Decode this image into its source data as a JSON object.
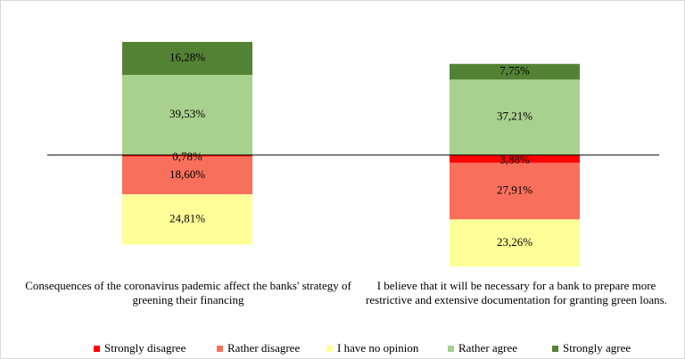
{
  "chart_data": {
    "type": "bar",
    "categories": [
      "Consequences of the coronavirus pademic affect the banks' strategy of greening their financing",
      "I believe that it will be necessary for a bank to prepare more restrictive and extensive documentation for granting green loans."
    ],
    "series": [
      {
        "name": "Strongly disagree",
        "color": "#ff0000",
        "values": [
          0.78,
          3.88
        ],
        "value_labels": [
          "0,78%",
          "3,88%"
        ]
      },
      {
        "name": "Rather disagree",
        "color": "#f8705c",
        "values": [
          18.6,
          27.91
        ],
        "value_labels": [
          "18,60%",
          "27,91%"
        ]
      },
      {
        "name": "I have no opinion",
        "color": "#ffff99",
        "values": [
          24.81,
          23.26
        ],
        "value_labels": [
          "24,81%",
          "23,26%"
        ]
      },
      {
        "name": "Rather agree",
        "color": "#a9d18e",
        "values": [
          39.53,
          37.21
        ],
        "value_labels": [
          "39,53%",
          "37,21%"
        ]
      },
      {
        "name": "Strongly agree",
        "color": "#548235",
        "values": [
          16.28,
          7.75
        ],
        "value_labels": [
          "16,28%",
          "7,75%"
        ]
      }
    ]
  }
}
